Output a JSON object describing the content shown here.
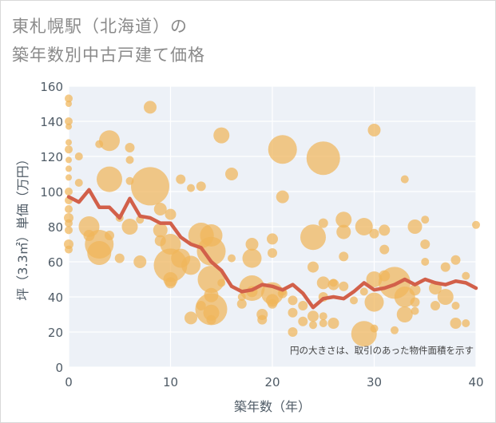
{
  "chart_data": {
    "type": "scatter",
    "title_lines": [
      "東札幌駅（北海道）の",
      "築年数別中古戸建て価格"
    ],
    "xlabel": "築年数（年）",
    "ylabel": "坪（3.3㎡）単価（万円）",
    "xlim": [
      0,
      40
    ],
    "ylim": [
      0,
      160
    ],
    "x_ticks": [
      0,
      10,
      20,
      30,
      40
    ],
    "y_ticks": [
      0,
      20,
      40,
      60,
      80,
      100,
      120,
      140,
      160
    ],
    "grid": true,
    "note": "円の大きさは、取引のあった物件面積を示す",
    "colors": {
      "bubble": "#f0b55a",
      "trend": "#d2604a",
      "plot_bg": "#edf1f7",
      "grid": "#ffffff"
    },
    "trend_line": {
      "x": [
        0,
        1,
        2,
        3,
        4,
        5,
        6,
        7,
        8,
        9,
        10,
        11,
        12,
        13,
        14,
        15,
        16,
        17,
        18,
        19,
        20,
        21,
        22,
        23,
        24,
        25,
        26,
        27,
        28,
        29,
        30,
        31,
        32,
        33,
        34,
        35,
        36,
        37,
        38,
        39,
        40
      ],
      "y": [
        97,
        94,
        101,
        91,
        91,
        85,
        96,
        86,
        85,
        82,
        82,
        74,
        70,
        68,
        60,
        55,
        46,
        43,
        44,
        47,
        46,
        44,
        47,
        42,
        34,
        39,
        40,
        39,
        43,
        48,
        44,
        45,
        47,
        50,
        47,
        50,
        48,
        47,
        49,
        48,
        45
      ]
    },
    "bubbles": {
      "x": [
        0,
        0,
        0,
        0,
        0,
        0,
        0,
        0,
        0,
        0,
        0,
        0,
        0,
        0,
        0,
        0,
        0,
        1,
        1,
        2,
        2,
        3,
        3,
        3,
        4,
        4,
        4,
        5,
        5,
        6,
        6,
        6,
        6,
        7,
        7,
        8,
        8,
        9,
        9,
        9,
        10,
        10,
        10,
        10,
        10,
        11,
        11,
        12,
        12,
        12,
        13,
        13,
        13,
        14,
        14,
        14,
        14,
        14,
        14,
        14,
        15,
        15,
        16,
        16,
        17,
        17,
        18,
        18,
        18,
        18,
        19,
        19,
        20,
        20,
        20,
        20,
        20,
        21,
        21,
        21,
        21,
        22,
        22,
        22,
        23,
        23,
        24,
        24,
        24,
        24,
        25,
        25,
        25,
        25,
        25,
        25,
        26,
        26,
        26,
        27,
        27,
        27,
        27,
        28,
        29,
        29,
        29,
        30,
        30,
        30,
        30,
        30,
        31,
        31,
        31,
        32,
        32,
        33,
        33,
        33,
        34,
        34,
        34,
        34,
        35,
        35,
        35,
        36,
        36,
        37,
        37,
        38,
        38,
        38,
        39,
        39,
        40
      ],
      "y": [
        153,
        150,
        140,
        137,
        128,
        124,
        118,
        113,
        108,
        100,
        95,
        90,
        85,
        82,
        78,
        70,
        67,
        120,
        105,
        80,
        75,
        70,
        65,
        127,
        129,
        107,
        75,
        62,
        85,
        125,
        118,
        106,
        80,
        84,
        60,
        148,
        103,
        90,
        78,
        72,
        87,
        70,
        58,
        50,
        48,
        107,
        62,
        102,
        58,
        28,
        103,
        75,
        35,
        75,
        66,
        50,
        41,
        33,
        31,
        27,
        132,
        48,
        110,
        62,
        40,
        36,
        70,
        62,
        45,
        43,
        30,
        27,
        73,
        65,
        42,
        38,
        36,
        124,
        97,
        43,
        42,
        38,
        31,
        20,
        35,
        26,
        74,
        57,
        29,
        24,
        119,
        82,
        48,
        40,
        29,
        25,
        48,
        47,
        25,
        84,
        77,
        63,
        46,
        38,
        80,
        43,
        19,
        135,
        76,
        50,
        37,
        22,
        78,
        67,
        52,
        48,
        21,
        107,
        40,
        30,
        80,
        44,
        37,
        32,
        84,
        70,
        60,
        45,
        35,
        57,
        40,
        25,
        61,
        35,
        52,
        25,
        81
      ]
    }
  }
}
